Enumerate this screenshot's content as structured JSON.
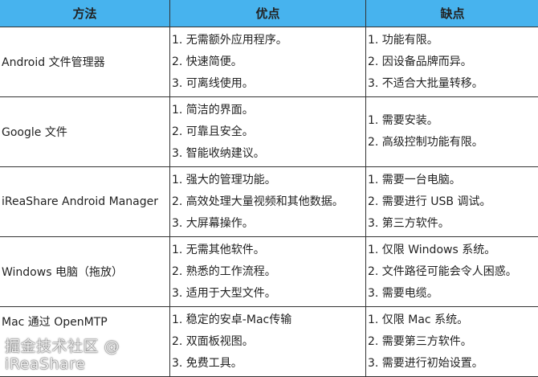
{
  "headers": [
    "方法",
    "优点",
    "缺点"
  ],
  "rows": [
    {
      "method": "Android 文件管理器",
      "pros": [
        "1. 无需额外应用程序。",
        "2. 快速简便。",
        "3. 可离线使用。"
      ],
      "cons": [
        "1. 功能有限。",
        "2. 因设备品牌而异。",
        "3. 不适合大批量转移。"
      ]
    },
    {
      "method": "Google 文件",
      "pros": [
        "1. 简洁的界面。",
        "2. 可靠且安全。",
        "3. 智能收纳建议。"
      ],
      "cons": [
        "1. 需要安装。",
        "2. 高级控制功能有限。"
      ]
    },
    {
      "method": "iReaShare Android Manager",
      "pros": [
        "1. 强大的管理功能。",
        "2. 高效处理大量视频和其他数据。",
        "3. 大屏幕操作。"
      ],
      "cons": [
        "1. 需要一台电脑。",
        "2. 需要进行 USB 调试。",
        "3. 第三方软件。"
      ]
    },
    {
      "method": "Windows 电脑（拖放）",
      "pros": [
        "1. 无需其他软件。",
        "2. 熟悉的工作流程。",
        "3. 适用于大型文件。"
      ],
      "cons": [
        "1. 仅限 Windows 系统。",
        "2. 文件路径可能会令人困惑。",
        "3. 需要电缆。"
      ]
    },
    {
      "method": "Mac 通过 OpenMTP",
      "pros": [
        "1. 稳定的安卓-Mac传输",
        "2. 双面板视图。",
        "3. 免费工具。"
      ],
      "cons": [
        "1. 仅限 Mac 系统。",
        "2. 需要第三方软件。",
        "3. 需要进行初始设置。"
      ]
    }
  ],
  "watermark": "掘金技术社区 @ iReaShare",
  "colors": {
    "header_bg": "#47b3ee",
    "border": "#333333"
  }
}
